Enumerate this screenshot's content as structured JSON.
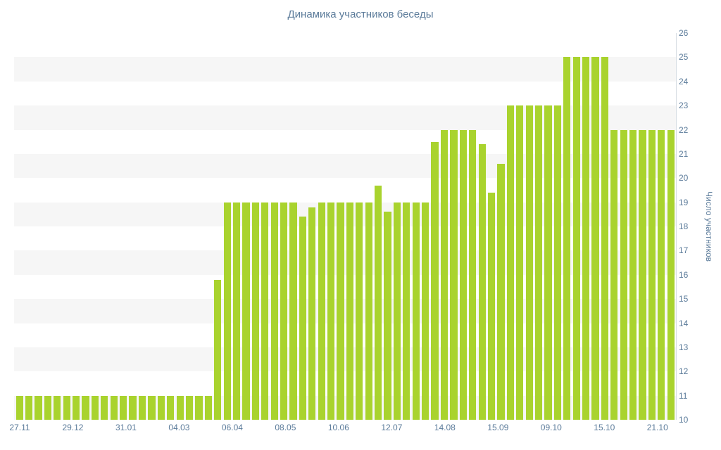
{
  "title": "Динамика участников беседы",
  "chart_data": {
    "type": "bar",
    "title": "Динамика участников беседы",
    "xlabel": "",
    "ylabel": "Число участников",
    "ylim": [
      10,
      26
    ],
    "y_ticks": [
      26,
      25,
      24,
      23,
      22,
      21,
      20,
      19,
      18,
      17,
      16,
      15,
      14,
      13,
      12,
      11,
      10
    ],
    "x_tick_labels": [
      "27.11",
      "29.12",
      "31.01",
      "04.03",
      "06.04",
      "08.05",
      "10.06",
      "12.07",
      "14.08",
      "15.09",
      "09.10",
      "15.10",
      "21.10"
    ],
    "values": [
      11,
      11,
      11,
      11,
      11,
      11,
      11,
      11,
      11,
      11,
      11,
      11,
      11,
      11,
      11,
      11,
      11,
      11,
      11,
      11,
      11,
      15.8,
      19,
      19,
      19,
      19,
      19,
      19,
      19,
      19,
      18.4,
      18.8,
      19,
      19,
      19,
      19,
      19,
      19,
      19.7,
      18.6,
      19,
      19,
      19,
      19,
      21.5,
      22,
      22,
      22,
      22,
      21.4,
      19.4,
      20.6,
      23,
      23,
      23,
      23,
      23,
      23,
      25,
      25,
      25,
      25,
      25,
      22,
      22,
      22,
      22,
      22,
      22,
      22
    ],
    "bar_color": "#a9d32e",
    "band_color": "#f6f6f6",
    "text_color": "#5b7b9a",
    "grid": "alternating horizontal unit bands",
    "legend": "none"
  }
}
